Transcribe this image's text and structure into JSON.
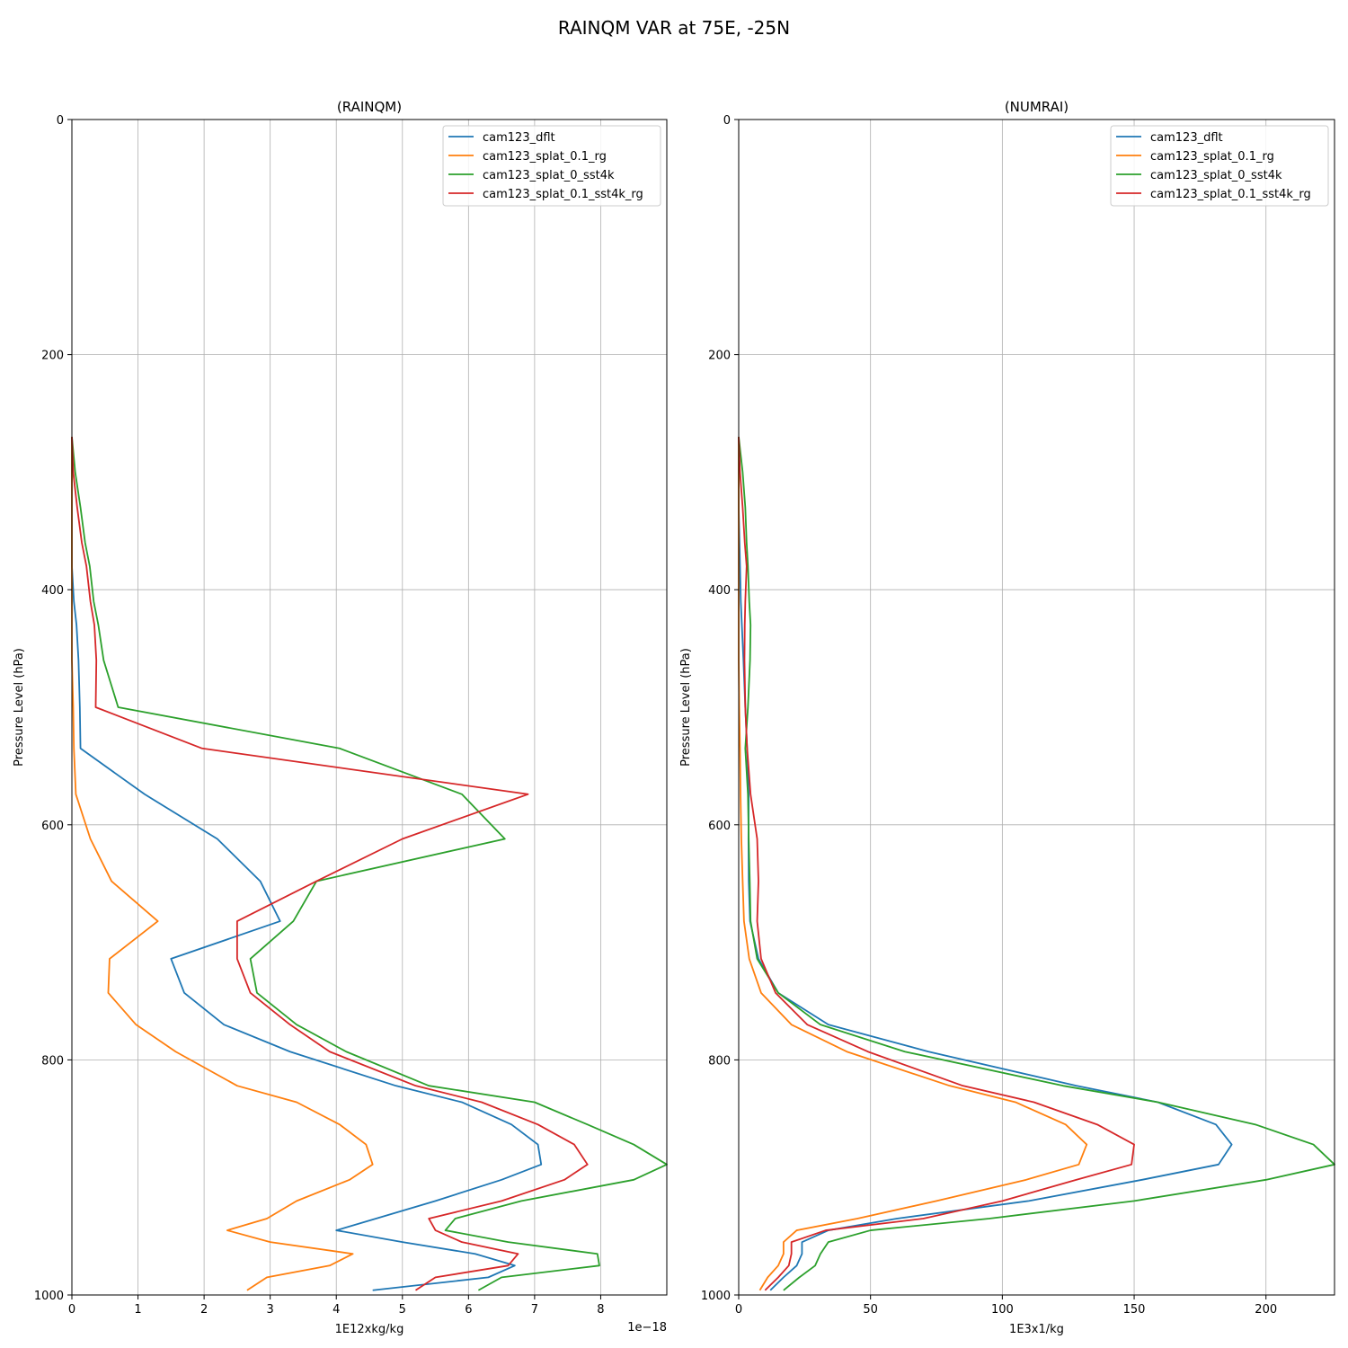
{
  "figure": {
    "title": "RAINQM VAR at 75E, -25N"
  },
  "chart_data": [
    {
      "type": "line",
      "title": "(RAINQM)",
      "xlabel": "1E12xkg/kg",
      "ylabel": "Pressure Level (hPa)",
      "offset_text": "1e−18",
      "xlim": [
        0,
        9
      ],
      "ylim": [
        1000,
        0
      ],
      "x_ticks": [
        0,
        1,
        2,
        3,
        4,
        5,
        6,
        7,
        8
      ],
      "x_tick_labels": [
        "0",
        "1",
        "2",
        "3",
        "4",
        "5",
        "6",
        "7",
        "8"
      ],
      "y_ticks": [
        0,
        200,
        400,
        600,
        800,
        1000
      ],
      "y_tick_labels": [
        "0",
        "200",
        "400",
        "600",
        "800",
        "1000"
      ],
      "grid": true,
      "legend_position": "upper-right",
      "levels": [
        270,
        300,
        330,
        360,
        380,
        410,
        430,
        460,
        500,
        535,
        574,
        612,
        648,
        682,
        714,
        743,
        770,
        793,
        822,
        836,
        855,
        872,
        889,
        902,
        920,
        935,
        945,
        955,
        965,
        975,
        985,
        996
      ],
      "series": [
        {
          "name": "cam123_dflt",
          "color": "#1f77b4",
          "values": [
            0,
            0,
            0,
            0,
            0,
            0.03,
            0.07,
            0.1,
            0.12,
            0.13,
            1.1,
            2.2,
            2.85,
            3.15,
            1.5,
            1.7,
            2.3,
            3.3,
            4.9,
            5.9,
            6.65,
            7.05,
            7.1,
            6.5,
            5.5,
            4.6,
            4.0,
            5.0,
            6.1,
            6.7,
            6.3,
            4.55
          ]
        },
        {
          "name": "cam123_splat_0.1_rg",
          "color": "#ff7f0e",
          "values": [
            0,
            0,
            0,
            0,
            0,
            0,
            0,
            0,
            0.02,
            0.03,
            0.06,
            0.28,
            0.6,
            1.3,
            0.57,
            0.55,
            0.97,
            1.57,
            2.5,
            3.4,
            4.05,
            4.45,
            4.55,
            4.2,
            3.4,
            2.95,
            2.35,
            3.0,
            4.25,
            3.9,
            2.95,
            2.65
          ]
        },
        {
          "name": "cam123_splat_0_sst4k",
          "color": "#2ca02c",
          "values": [
            0,
            0.05,
            0.13,
            0.2,
            0.27,
            0.33,
            0.4,
            0.48,
            0.7,
            4.05,
            5.9,
            6.55,
            3.7,
            3.35,
            2.7,
            2.8,
            3.4,
            4.15,
            5.4,
            7.0,
            7.8,
            8.5,
            9.0,
            8.5,
            6.8,
            5.8,
            5.65,
            6.6,
            7.95,
            7.98,
            6.5,
            6.15
          ]
        },
        {
          "name": "cam123_splat_0.1_sst4k_rg",
          "color": "#d62728",
          "values": [
            0,
            0.02,
            0.08,
            0.15,
            0.22,
            0.28,
            0.34,
            0.37,
            0.36,
            1.97,
            6.9,
            5.0,
            3.7,
            2.5,
            2.5,
            2.7,
            3.3,
            3.9,
            5.2,
            6.2,
            7.05,
            7.6,
            7.8,
            7.45,
            6.5,
            5.4,
            5.5,
            5.9,
            6.75,
            6.6,
            5.5,
            5.2
          ]
        }
      ]
    },
    {
      "type": "line",
      "title": "(NUMRAI)",
      "xlabel": "1E3x1/kg",
      "ylabel": "Pressure Level (hPa)",
      "xlim": [
        0,
        226
      ],
      "ylim": [
        1000,
        0
      ],
      "x_ticks": [
        0,
        50,
        100,
        150,
        200
      ],
      "x_tick_labels": [
        "0",
        "50",
        "100",
        "150",
        "200"
      ],
      "y_ticks": [
        0,
        200,
        400,
        600,
        800,
        1000
      ],
      "y_tick_labels": [
        "0",
        "200",
        "400",
        "600",
        "800",
        "1000"
      ],
      "grid": true,
      "legend_position": "upper-right",
      "levels": [
        270,
        300,
        330,
        360,
        380,
        410,
        430,
        460,
        500,
        535,
        574,
        612,
        648,
        682,
        714,
        743,
        770,
        793,
        822,
        836,
        855,
        872,
        889,
        902,
        920,
        935,
        945,
        955,
        965,
        975,
        985,
        996
      ],
      "series": [
        {
          "name": "cam123_dflt",
          "color": "#1f77b4",
          "values": [
            0,
            0,
            0,
            0.3,
            0.5,
            0.8,
            1.2,
            1.8,
            2.5,
            3.2,
            3.8,
            3.7,
            3.8,
            4.3,
            7.5,
            15,
            34,
            72,
            128,
            159,
            181,
            187,
            182,
            153,
            110,
            60,
            34,
            24,
            24,
            22,
            17,
            12
          ]
        },
        {
          "name": "cam123_splat_0.1_rg",
          "color": "#ff7f0e",
          "values": [
            0,
            0,
            0,
            0,
            0,
            0,
            0,
            0,
            0.2,
            0.5,
            0.7,
            1.0,
            1.5,
            2.0,
            4.0,
            8.5,
            20,
            41,
            80,
            105,
            124,
            132,
            129,
            109,
            75,
            45,
            22,
            17,
            17,
            15,
            11,
            8
          ]
        },
        {
          "name": "cam123_splat_0_sst4k",
          "color": "#2ca02c",
          "values": [
            0,
            1.5,
            2.5,
            3.0,
            3.5,
            4.0,
            4.5,
            4.3,
            3.5,
            2.5,
            3.5,
            3.8,
            4.2,
            4.5,
            7.0,
            15,
            31,
            63,
            123,
            159,
            196,
            218,
            226,
            200,
            150,
            95,
            50,
            34,
            31,
            29,
            23,
            17
          ]
        },
        {
          "name": "cam123_splat_0.1_sst4k_rg",
          "color": "#d62728",
          "values": [
            0,
            0.5,
            1.5,
            2.3,
            3.0,
            2.5,
            2.3,
            2.2,
            2.5,
            3.2,
            4.5,
            7.0,
            7.5,
            7.0,
            8.5,
            14,
            26,
            49,
            85,
            112,
            136,
            150,
            149,
            128,
            100,
            70,
            33,
            20,
            20,
            19,
            15,
            10
          ]
        }
      ]
    }
  ]
}
